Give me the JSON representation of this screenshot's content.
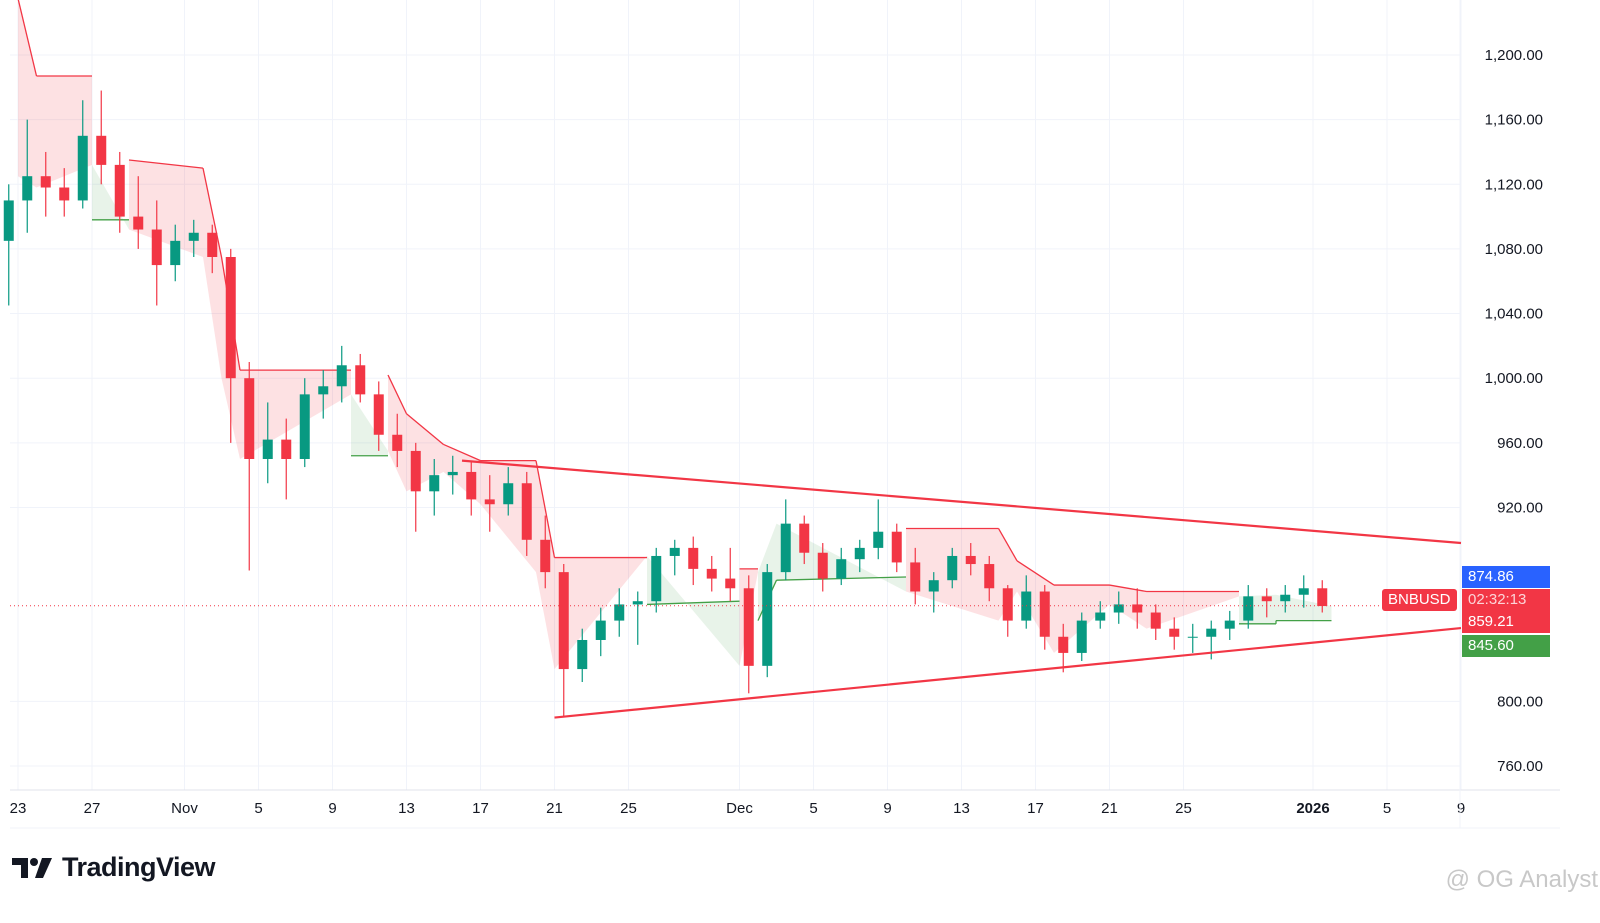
{
  "chart_data": {
    "type": "candlestick",
    "symbol": "BNBUSD",
    "ylim": [
      740,
      1240
    ],
    "y_ticks": [
      760,
      800,
      920,
      960,
      1000,
      1040,
      1080,
      1120,
      1160,
      1200
    ],
    "y_tick_labels": [
      "760.00",
      "800.00",
      "920.00",
      "960.00",
      "1,000.00",
      "1,040.00",
      "1,080.00",
      "1,120.00",
      "1,160.00",
      "1,200.00"
    ],
    "x_ticks": [
      {
        "date": "2025-10-23",
        "label": "23"
      },
      {
        "date": "2025-10-27",
        "label": "27"
      },
      {
        "date": "2025-11-01",
        "label": "Nov"
      },
      {
        "date": "2025-11-05",
        "label": "5"
      },
      {
        "date": "2025-11-09",
        "label": "9"
      },
      {
        "date": "2025-11-13",
        "label": "13"
      },
      {
        "date": "2025-11-17",
        "label": "17"
      },
      {
        "date": "2025-11-21",
        "label": "21"
      },
      {
        "date": "2025-11-25",
        "label": "25"
      },
      {
        "date": "2025-12-01",
        "label": "Dec"
      },
      {
        "date": "2025-12-05",
        "label": "5"
      },
      {
        "date": "2025-12-09",
        "label": "9"
      },
      {
        "date": "2025-12-13",
        "label": "13"
      },
      {
        "date": "2025-12-17",
        "label": "17"
      },
      {
        "date": "2025-12-21",
        "label": "21"
      },
      {
        "date": "2025-12-25",
        "label": "25"
      },
      {
        "date": "2026-01-01",
        "label": "2026",
        "bold": true
      },
      {
        "date": "2026-01-05",
        "label": "5"
      },
      {
        "date": "2026-01-09",
        "label": "9"
      }
    ],
    "candles_ohlc": [
      [
        "2025-10-22",
        1085,
        1120,
        1045,
        1110
      ],
      [
        "2025-10-23",
        1110,
        1160,
        1090,
        1125
      ],
      [
        "2025-10-24",
        1125,
        1140,
        1100,
        1118
      ],
      [
        "2025-10-25",
        1118,
        1130,
        1100,
        1110
      ],
      [
        "2025-10-26",
        1110,
        1172,
        1105,
        1150
      ],
      [
        "2025-10-27",
        1150,
        1178,
        1120,
        1132
      ],
      [
        "2025-10-28",
        1132,
        1140,
        1090,
        1100
      ],
      [
        "2025-10-29",
        1100,
        1125,
        1080,
        1092
      ],
      [
        "2025-10-30",
        1092,
        1110,
        1045,
        1070
      ],
      [
        "2025-10-31",
        1070,
        1095,
        1060,
        1085
      ],
      [
        "2025-11-01",
        1085,
        1098,
        1075,
        1090
      ],
      [
        "2025-11-02",
        1090,
        1095,
        1065,
        1075
      ],
      [
        "2025-11-03",
        1075,
        1080,
        960,
        1000
      ],
      [
        "2025-11-04",
        1000,
        1010,
        881,
        950
      ],
      [
        "2025-11-05",
        950,
        985,
        935,
        962
      ],
      [
        "2025-11-06",
        962,
        975,
        925,
        950
      ],
      [
        "2025-11-07",
        950,
        1000,
        945,
        990
      ],
      [
        "2025-11-08",
        990,
        1005,
        975,
        995
      ],
      [
        "2025-11-09",
        995,
        1020,
        985,
        1008
      ],
      [
        "2025-11-10",
        1008,
        1015,
        985,
        990
      ],
      [
        "2025-11-11",
        990,
        998,
        955,
        965
      ],
      [
        "2025-11-12",
        965,
        978,
        945,
        955
      ],
      [
        "2025-11-13",
        955,
        960,
        905,
        930
      ],
      [
        "2025-11-14",
        930,
        950,
        915,
        940
      ],
      [
        "2025-11-15",
        940,
        952,
        928,
        942
      ],
      [
        "2025-11-16",
        942,
        948,
        915,
        925
      ],
      [
        "2025-11-17",
        925,
        940,
        905,
        922
      ],
      [
        "2025-11-18",
        922,
        945,
        915,
        935
      ],
      [
        "2025-11-19",
        935,
        942,
        890,
        900
      ],
      [
        "2025-11-20",
        900,
        915,
        870,
        880
      ],
      [
        "2025-11-21",
        880,
        885,
        790,
        820
      ],
      [
        "2025-11-22",
        820,
        845,
        812,
        838
      ],
      [
        "2025-11-23",
        838,
        858,
        828,
        850
      ],
      [
        "2025-11-24",
        850,
        870,
        840,
        860
      ],
      [
        "2025-11-25",
        860,
        868,
        835,
        862
      ],
      [
        "2025-11-26",
        862,
        895,
        855,
        890
      ],
      [
        "2025-11-27",
        890,
        900,
        878,
        895
      ],
      [
        "2025-11-28",
        895,
        902,
        872,
        882
      ],
      [
        "2025-11-29",
        882,
        890,
        868,
        876
      ],
      [
        "2025-11-30",
        876,
        895,
        862,
        870
      ],
      [
        "2025-12-01",
        870,
        878,
        805,
        822
      ],
      [
        "2025-12-02",
        822,
        885,
        815,
        880
      ],
      [
        "2025-12-03",
        880,
        925,
        875,
        910
      ],
      [
        "2025-12-04",
        910,
        915,
        885,
        892
      ],
      [
        "2025-12-05",
        892,
        898,
        868,
        876
      ],
      [
        "2025-12-06",
        876,
        895,
        872,
        888
      ],
      [
        "2025-12-07",
        888,
        900,
        880,
        895
      ],
      [
        "2025-12-08",
        895,
        925,
        888,
        905
      ],
      [
        "2025-12-09",
        905,
        910,
        880,
        886
      ],
      [
        "2025-12-10",
        886,
        895,
        860,
        868
      ],
      [
        "2025-12-11",
        868,
        880,
        855,
        875
      ],
      [
        "2025-12-12",
        875,
        895,
        870,
        890
      ],
      [
        "2025-12-13",
        890,
        898,
        878,
        885
      ],
      [
        "2025-12-14",
        885,
        890,
        862,
        870
      ],
      [
        "2025-12-15",
        870,
        872,
        840,
        850
      ],
      [
        "2025-12-16",
        850,
        878,
        845,
        868
      ],
      [
        "2025-12-17",
        868,
        872,
        832,
        840
      ],
      [
        "2025-12-18",
        840,
        848,
        818,
        830
      ],
      [
        "2025-12-19",
        830,
        855,
        825,
        850
      ],
      [
        "2025-12-20",
        850,
        862,
        845,
        855
      ],
      [
        "2025-12-21",
        855,
        868,
        848,
        860
      ],
      [
        "2025-12-22",
        860,
        870,
        845,
        855
      ],
      [
        "2025-12-23",
        855,
        860,
        838,
        845
      ],
      [
        "2025-12-24",
        845,
        852,
        832,
        840
      ],
      [
        "2025-12-25",
        840,
        848,
        830,
        840
      ],
      [
        "2025-12-26",
        840,
        850,
        826,
        845
      ],
      [
        "2025-12-27",
        845,
        856,
        838,
        850
      ],
      [
        "2025-12-28",
        850,
        872,
        845,
        865
      ],
      [
        "2025-12-29",
        865,
        870,
        852,
        862
      ],
      [
        "2025-12-30",
        862,
        872,
        855,
        866
      ],
      [
        "2025-12-31",
        866,
        878,
        858,
        870
      ],
      [
        "2026-01-01",
        870,
        875,
        855,
        859
      ]
    ],
    "trend_stop_line": [
      [
        "2025-10-23",
        1235,
        "down"
      ],
      [
        "2025-10-24",
        1187,
        "down"
      ],
      [
        "2025-10-27",
        1187,
        "down"
      ],
      [
        "2025-10-27",
        1098,
        "up"
      ],
      [
        "2025-10-29",
        1098,
        "up"
      ],
      [
        "2025-10-29",
        1135,
        "down"
      ],
      [
        "2025-11-02",
        1130,
        "down"
      ],
      [
        "2025-11-03",
        1075,
        "down"
      ],
      [
        "2025-11-04",
        1005,
        "down"
      ],
      [
        "2025-11-10",
        1005,
        "down"
      ],
      [
        "2025-11-10",
        952,
        "up"
      ],
      [
        "2025-11-12",
        952,
        "up"
      ],
      [
        "2025-11-12",
        1002,
        "down"
      ],
      [
        "2025-11-13",
        978,
        "down"
      ],
      [
        "2025-11-15",
        959,
        "down"
      ],
      [
        "2025-11-17",
        949,
        "down"
      ],
      [
        "2025-11-20",
        949,
        "down"
      ],
      [
        "2025-11-21",
        889,
        "down"
      ],
      [
        "2025-11-26",
        889,
        "down"
      ],
      [
        "2025-11-26",
        860,
        "up"
      ],
      [
        "2025-12-01",
        862,
        "up"
      ],
      [
        "2025-12-01",
        882,
        "down"
      ],
      [
        "2025-12-02",
        882,
        "down"
      ],
      [
        "2025-12-02",
        850,
        "up"
      ],
      [
        "2025-12-03",
        875,
        "up"
      ],
      [
        "2025-12-10",
        877,
        "up"
      ],
      [
        "2025-12-10",
        907,
        "down"
      ],
      [
        "2025-12-15",
        907,
        "down"
      ],
      [
        "2025-12-16",
        887,
        "down"
      ],
      [
        "2025-12-18",
        872,
        "down"
      ],
      [
        "2025-12-21",
        872,
        "down"
      ],
      [
        "2025-12-23",
        868,
        "down"
      ],
      [
        "2025-12-28",
        868,
        "down"
      ],
      [
        "2025-12-28",
        848,
        "up"
      ],
      [
        "2025-12-30",
        848,
        "up"
      ],
      [
        "2025-12-30",
        850,
        "up"
      ],
      [
        "2026-01-02",
        850,
        "up"
      ]
    ],
    "trendlines": [
      {
        "from": [
          "2025-11-16",
          949
        ],
        "to": [
          "2026-01-09",
          898
        ],
        "color": "#f23645"
      },
      {
        "from": [
          "2025-11-21",
          790
        ],
        "to": [
          "2026-01-09",
          845.4
        ],
        "color": "#f23645"
      }
    ],
    "last_price": 859.21,
    "price_tags": [
      {
        "label": "874.86",
        "color": "#2962ff"
      },
      {
        "label": "02:32:13",
        "color": "#f23645"
      },
      {
        "label": "859.21",
        "color": "#f23645"
      },
      {
        "label": "845.60",
        "color": "#43a047"
      }
    ],
    "colors": {
      "up": "#089981",
      "down": "#f23645",
      "grid": "#f0f3fa"
    }
  },
  "branding": {
    "logo_text": "TradingView",
    "watermark": "@ OG Analyst"
  }
}
